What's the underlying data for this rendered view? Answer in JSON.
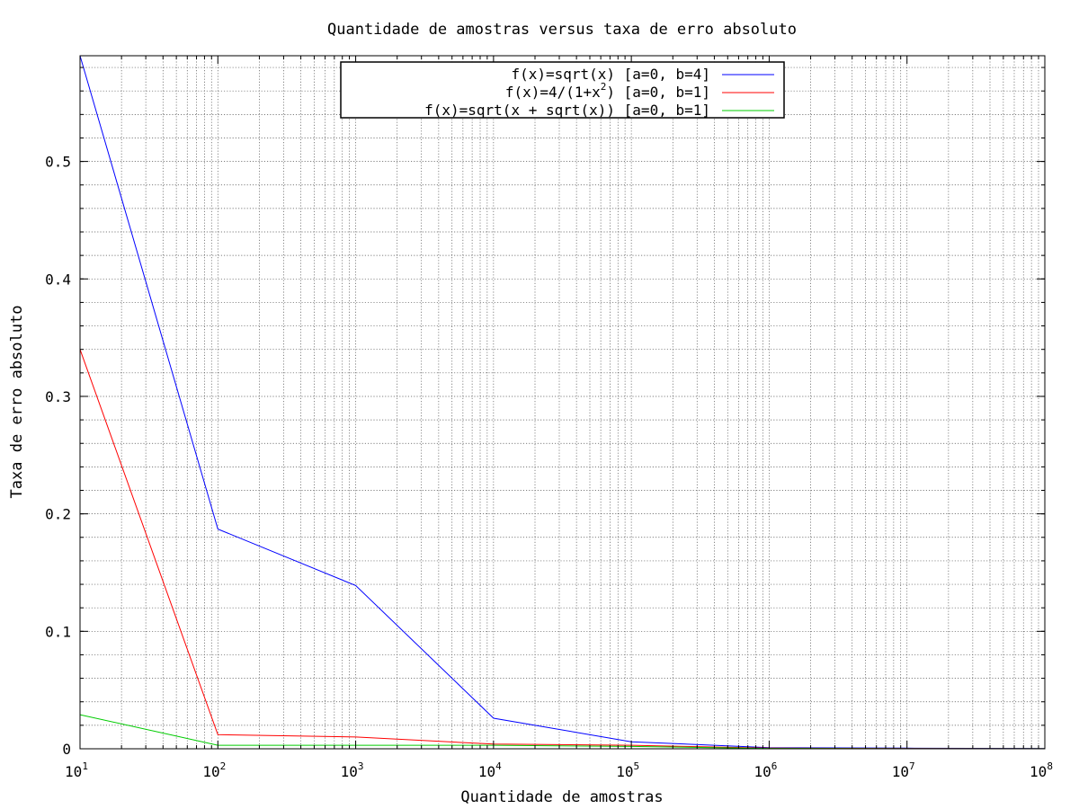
{
  "chart_data": {
    "type": "line",
    "title": "Quantidade de amostras versus taxa de erro absoluto",
    "xlabel": "Quantidade de amostras",
    "ylabel": "Taxa de erro absoluto",
    "x_scale": "log10",
    "xlim": [
      10,
      100000000
    ],
    "ylim": [
      0,
      0.59
    ],
    "x_ticks": [
      {
        "base": "10",
        "exp": "1",
        "value": 10
      },
      {
        "base": "10",
        "exp": "2",
        "value": 100
      },
      {
        "base": "10",
        "exp": "3",
        "value": 1000
      },
      {
        "base": "10",
        "exp": "4",
        "value": 10000
      },
      {
        "base": "10",
        "exp": "5",
        "value": 100000
      },
      {
        "base": "10",
        "exp": "6",
        "value": 1000000
      },
      {
        "base": "10",
        "exp": "7",
        "value": 10000000
      },
      {
        "base": "10",
        "exp": "8",
        "value": 100000000
      }
    ],
    "y_ticks": [
      {
        "label": "0",
        "value": 0
      },
      {
        "label": "0.1",
        "value": 0.1
      },
      {
        "label": "0.2",
        "value": 0.2
      },
      {
        "label": "0.3",
        "value": 0.3
      },
      {
        "label": "0.4",
        "value": 0.4
      },
      {
        "label": "0.5",
        "value": 0.5
      }
    ],
    "grid": true,
    "legend_position": "top-center",
    "x": [
      10,
      100,
      1000,
      10000,
      100000,
      1000000,
      10000000,
      100000000
    ],
    "series": [
      {
        "name": "f(x)=sqrt(x)  [a=0, b=4]",
        "legend_parts": [
          "f(x)=sqrt(x)  [a=0, b=4]"
        ],
        "color": "#0000ff",
        "values": [
          0.59,
          0.187,
          0.139,
          0.026,
          0.006,
          0.001,
          0.0005,
          0.0002
        ]
      },
      {
        "name": "f(x)=4/(1+x2)  [a=0, b=1]",
        "legend_parts": [
          "f(x)=4/(1+x",
          "2",
          ")  [a=0, b=1]"
        ],
        "color": "#ff0000",
        "values": [
          0.34,
          0.012,
          0.01,
          0.004,
          0.003,
          0.0005,
          0.0002,
          0.0001
        ]
      },
      {
        "name": "f(x)=sqrt(x + sqrt(x))  [a=0, b=1]",
        "legend_parts": [
          "f(x)=sqrt(x + sqrt(x))  [a=0, b=1]"
        ],
        "color": "#00cc00",
        "values": [
          0.029,
          0.003,
          0.003,
          0.003,
          0.002,
          0.0003,
          0.0001,
          0.0001
        ]
      }
    ]
  }
}
